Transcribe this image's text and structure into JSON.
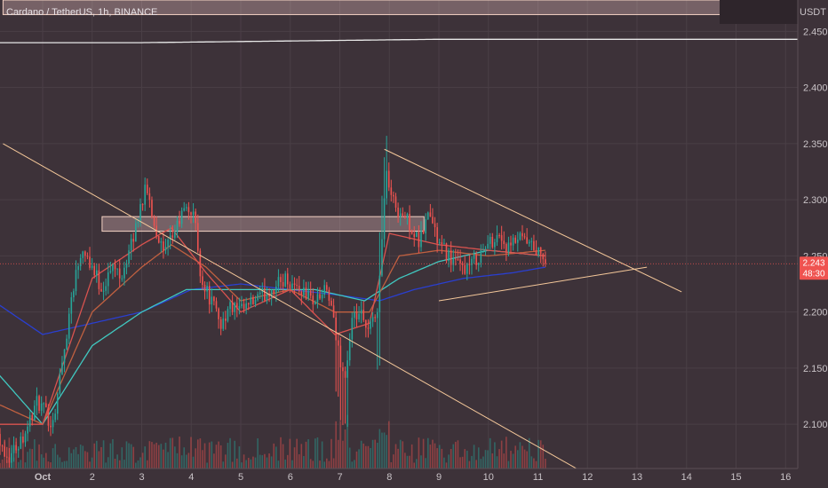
{
  "chart_data": {
    "type": "candlestick",
    "title": "Cardano / TetherUS, 1h, BINANCE",
    "currency": "USDT",
    "ylim": [
      2.072,
      2.478
    ],
    "y_ticks": [
      "2.450",
      "2.400",
      "2.350",
      "2.300",
      "2.250",
      "2.200",
      "2.150",
      "2.100"
    ],
    "x_ticks": [
      "Oct",
      "2",
      "3",
      "4",
      "5",
      "6",
      "7",
      "8",
      "9",
      "10",
      "11",
      "12",
      "13",
      "14",
      "15",
      "16"
    ],
    "last_price": "2.243",
    "countdown": "48:30",
    "grid": true,
    "colors": {
      "background": "#3d3239",
      "up": "#26a69a",
      "down": "#ef5350",
      "ma_fast": "#d9534f",
      "ma_mid": "#c06040",
      "ma_teal": "#40c8c0",
      "ma_slow": "#2a3fd0",
      "trendline": "#f5c89a",
      "ma_white": "#e8e8e8"
    },
    "anchors": [
      [
        -1.0,
        2.1
      ],
      [
        -0.7,
        2.07
      ],
      [
        -0.4,
        2.09
      ],
      [
        -0.1,
        2.12
      ],
      [
        0.2,
        2.1
      ],
      [
        0.45,
        2.17
      ],
      [
        0.6,
        2.22
      ],
      [
        0.8,
        2.26
      ],
      [
        1.0,
        2.24
      ],
      [
        1.2,
        2.22
      ],
      [
        1.4,
        2.24
      ],
      [
        1.6,
        2.235
      ],
      [
        1.8,
        2.26
      ],
      [
        2.0,
        2.3
      ],
      [
        2.1,
        2.31
      ],
      [
        2.25,
        2.28
      ],
      [
        2.45,
        2.25
      ],
      [
        2.65,
        2.27
      ],
      [
        2.85,
        2.29
      ],
      [
        3.05,
        2.29
      ],
      [
        3.2,
        2.23
      ],
      [
        3.4,
        2.21
      ],
      [
        3.6,
        2.19
      ],
      [
        3.8,
        2.205
      ],
      [
        4.0,
        2.2
      ],
      [
        4.3,
        2.21
      ],
      [
        4.6,
        2.22
      ],
      [
        4.9,
        2.23
      ],
      [
        5.2,
        2.22
      ],
      [
        5.5,
        2.21
      ],
      [
        5.75,
        2.22
      ],
      [
        5.95,
        2.17
      ],
      [
        6.1,
        2.14
      ],
      [
        6.25,
        2.19
      ],
      [
        6.4,
        2.2
      ],
      [
        6.55,
        2.18
      ],
      [
        6.75,
        2.2
      ],
      [
        6.85,
        2.26
      ],
      [
        6.92,
        2.33
      ],
      [
        7.05,
        2.3
      ],
      [
        7.2,
        2.29
      ],
      [
        7.4,
        2.28
      ],
      [
        7.6,
        2.26
      ],
      [
        7.8,
        2.29
      ],
      [
        8.0,
        2.26
      ],
      [
        8.2,
        2.25
      ],
      [
        8.4,
        2.24
      ],
      [
        8.6,
        2.24
      ],
      [
        8.8,
        2.25
      ],
      [
        9.0,
        2.26
      ],
      [
        9.2,
        2.27
      ],
      [
        9.4,
        2.255
      ],
      [
        9.6,
        2.265
      ],
      [
        9.8,
        2.26
      ],
      [
        10.0,
        2.253
      ],
      [
        10.15,
        2.243
      ]
    ],
    "moving_averages": [
      {
        "color": "ma_slow",
        "points": [
          [
            -1.0,
            2.21
          ],
          [
            0.0,
            2.18
          ],
          [
            1.0,
            2.19
          ],
          [
            2.0,
            2.2
          ],
          [
            3.0,
            2.22
          ],
          [
            4.0,
            2.225
          ],
          [
            5.0,
            2.22
          ],
          [
            6.0,
            2.215
          ],
          [
            6.8,
            2.21
          ],
          [
            7.5,
            2.22
          ],
          [
            8.5,
            2.23
          ],
          [
            9.5,
            2.235
          ],
          [
            10.15,
            2.24
          ]
        ]
      },
      {
        "color": "ma_teal",
        "points": [
          [
            -1.0,
            2.15
          ],
          [
            0.0,
            2.1
          ],
          [
            1.0,
            2.17
          ],
          [
            2.0,
            2.2
          ],
          [
            2.9,
            2.22
          ],
          [
            3.5,
            2.22
          ],
          [
            4.5,
            2.22
          ],
          [
            5.5,
            2.22
          ],
          [
            6.5,
            2.21
          ],
          [
            7.2,
            2.23
          ],
          [
            8.0,
            2.245
          ],
          [
            9.0,
            2.255
          ],
          [
            10.15,
            2.25
          ]
        ]
      },
      {
        "color": "ma_mid",
        "points": [
          [
            -1.0,
            2.12
          ],
          [
            0.0,
            2.1
          ],
          [
            1.0,
            2.2
          ],
          [
            2.0,
            2.24
          ],
          [
            2.6,
            2.26
          ],
          [
            3.3,
            2.24
          ],
          [
            4.0,
            2.21
          ],
          [
            5.0,
            2.22
          ],
          [
            5.9,
            2.2
          ],
          [
            6.6,
            2.2
          ],
          [
            7.2,
            2.25
          ],
          [
            8.0,
            2.255
          ],
          [
            9.0,
            2.25
          ],
          [
            10.15,
            2.255
          ]
        ]
      },
      {
        "color": "ma_fast",
        "points": [
          [
            -1.0,
            2.1
          ],
          [
            0.0,
            2.1
          ],
          [
            1.0,
            2.23
          ],
          [
            2.0,
            2.26
          ],
          [
            2.6,
            2.275
          ],
          [
            3.3,
            2.235
          ],
          [
            4.0,
            2.2
          ],
          [
            5.0,
            2.22
          ],
          [
            5.9,
            2.18
          ],
          [
            6.6,
            2.19
          ],
          [
            7.0,
            2.27
          ],
          [
            8.0,
            2.26
          ],
          [
            9.0,
            2.255
          ],
          [
            10.15,
            2.25
          ]
        ]
      },
      {
        "color": "ma_white",
        "points": [
          [
            -1.0,
            2.44
          ],
          [
            2.0,
            2.44
          ],
          [
            4.0,
            2.441
          ],
          [
            6.0,
            2.442
          ],
          [
            8.0,
            2.443
          ],
          [
            10.15,
            2.443
          ],
          [
            16.0,
            2.443
          ]
        ]
      }
    ],
    "trendlines": [
      {
        "from": [
          -0.8,
          2.35
        ],
        "to": [
          10.8,
          2.06
        ]
      },
      {
        "from": [
          6.9,
          2.345
        ],
        "to": [
          12.9,
          2.218
        ]
      },
      {
        "from": [
          8.0,
          2.21
        ],
        "to": [
          12.2,
          2.24
        ]
      }
    ],
    "zones": [
      {
        "x_from": -0.8,
        "x_to": 14.6,
        "y_from": 2.465,
        "y_to": 2.478
      },
      {
        "x_from": 1.2,
        "x_to": 7.7,
        "y_from": 2.272,
        "y_to": 2.285
      }
    ]
  }
}
